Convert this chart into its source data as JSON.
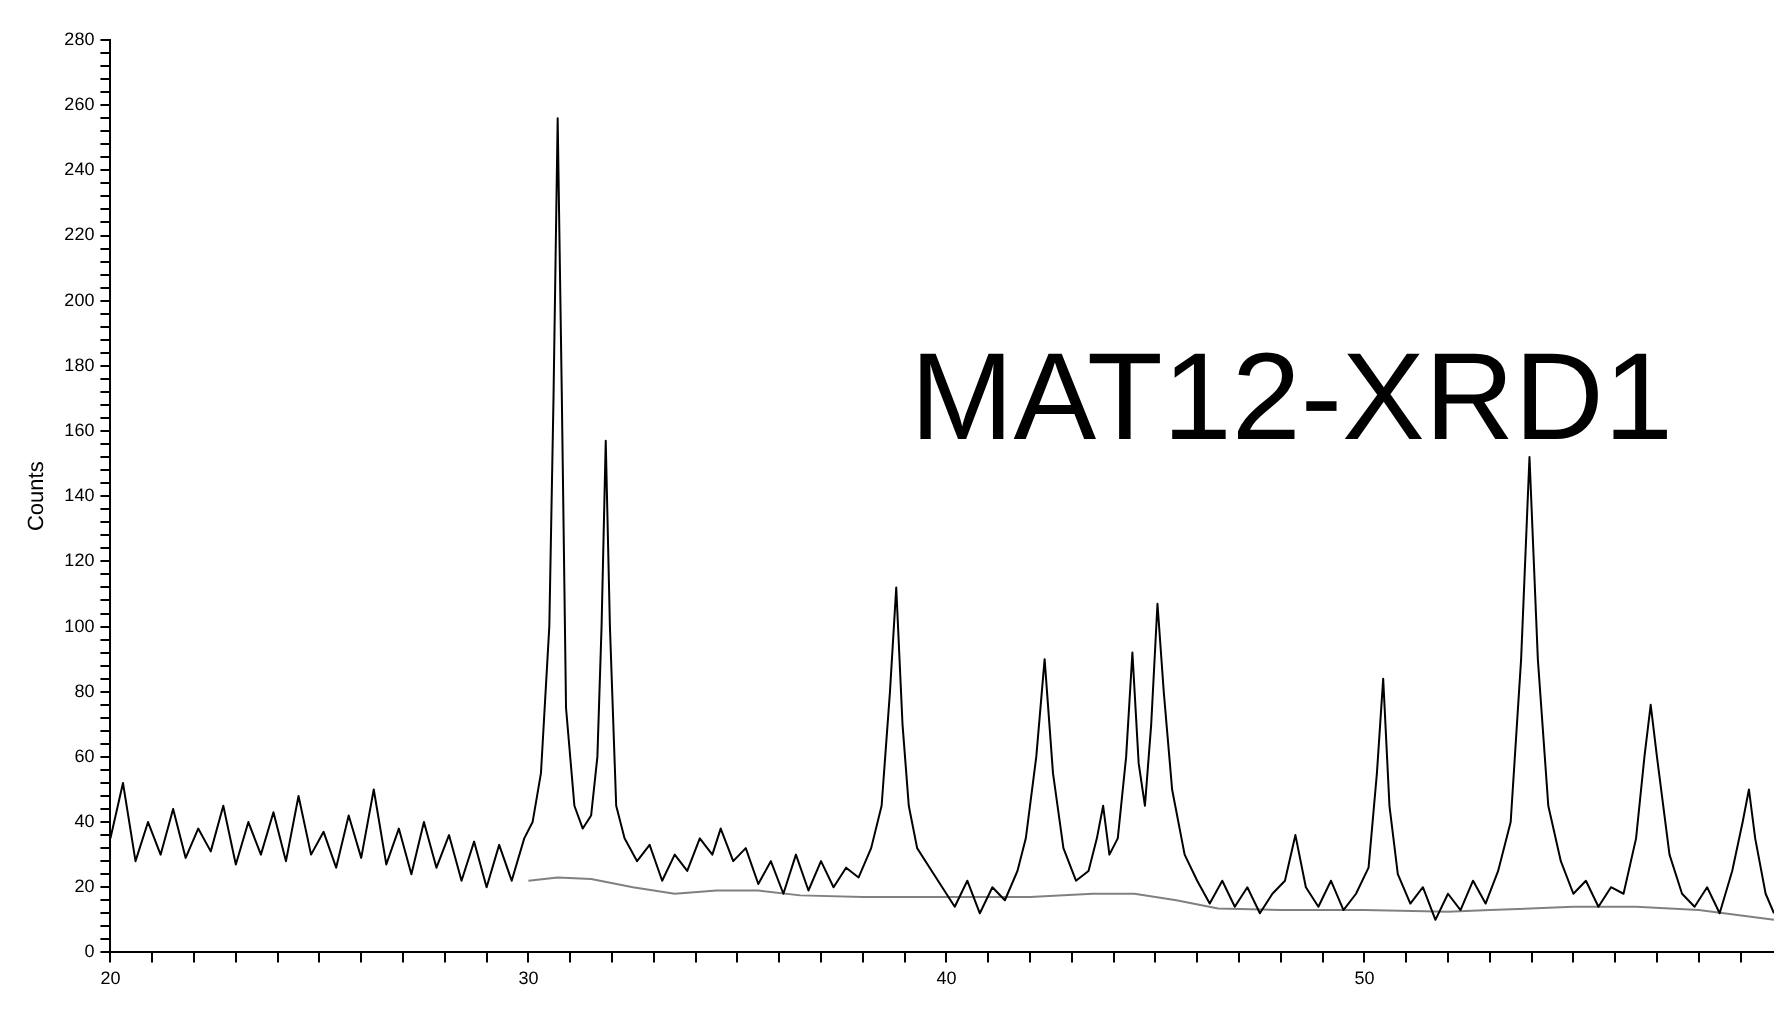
{
  "chart_data": {
    "type": "line",
    "ylabel": "Counts",
    "annotations": [
      "MAT12-XRD1"
    ],
    "xlim": [
      20,
      59.8
    ],
    "ylim": [
      0,
      280
    ],
    "xticks": [
      20,
      {
        "value": 21,
        "label": null
      },
      {
        "value": 22,
        "label": null
      },
      {
        "value": 23,
        "label": null
      },
      {
        "value": 24,
        "label": null
      },
      {
        "value": 25,
        "label": null
      },
      {
        "value": 26,
        "label": null
      },
      {
        "value": 27,
        "label": null
      },
      {
        "value": 28,
        "label": null
      },
      {
        "value": 29,
        "label": null
      },
      30,
      {
        "value": 31,
        "label": null
      },
      {
        "value": 32,
        "label": null
      },
      {
        "value": 33,
        "label": null
      },
      {
        "value": 34,
        "label": null
      },
      {
        "value": 35,
        "label": null
      },
      {
        "value": 36,
        "label": null
      },
      {
        "value": 37,
        "label": null
      },
      {
        "value": 38,
        "label": null
      },
      {
        "value": 39,
        "label": null
      },
      40,
      {
        "value": 41,
        "label": null
      },
      {
        "value": 42,
        "label": null
      },
      {
        "value": 43,
        "label": null
      },
      {
        "value": 44,
        "label": null
      },
      {
        "value": 45,
        "label": null
      },
      {
        "value": 46,
        "label": null
      },
      {
        "value": 47,
        "label": null
      },
      {
        "value": 48,
        "label": null
      },
      {
        "value": 49,
        "label": null
      },
      50,
      {
        "value": 51,
        "label": null
      },
      {
        "value": 52,
        "label": null
      },
      {
        "value": 53,
        "label": null
      },
      {
        "value": 54,
        "label": null
      },
      {
        "value": 55,
        "label": null
      },
      {
        "value": 56,
        "label": null
      },
      {
        "value": 57,
        "label": null
      },
      {
        "value": 58,
        "label": null
      },
      {
        "value": 59,
        "label": null
      }
    ],
    "yticks": [
      0,
      {
        "value": 4,
        "label": null
      },
      {
        "value": 8,
        "label": null
      },
      {
        "value": 12,
        "label": null
      },
      {
        "value": 16,
        "label": null
      },
      20,
      {
        "value": 24,
        "label": null
      },
      {
        "value": 28,
        "label": null
      },
      {
        "value": 32,
        "label": null
      },
      {
        "value": 36,
        "label": null
      },
      40,
      {
        "value": 44,
        "label": null
      },
      {
        "value": 48,
        "label": null
      },
      {
        "value": 52,
        "label": null
      },
      {
        "value": 56,
        "label": null
      },
      60,
      {
        "value": 64,
        "label": null
      },
      {
        "value": 68,
        "label": null
      },
      {
        "value": 72,
        "label": null
      },
      {
        "value": 76,
        "label": null
      },
      80,
      {
        "value": 84,
        "label": null
      },
      {
        "value": 88,
        "label": null
      },
      {
        "value": 92,
        "label": null
      },
      {
        "value": 96,
        "label": null
      },
      100,
      {
        "value": 104,
        "label": null
      },
      {
        "value": 108,
        "label": null
      },
      {
        "value": 112,
        "label": null
      },
      {
        "value": 116,
        "label": null
      },
      120,
      {
        "value": 124,
        "label": null
      },
      {
        "value": 128,
        "label": null
      },
      {
        "value": 132,
        "label": null
      },
      {
        "value": 136,
        "label": null
      },
      140,
      {
        "value": 144,
        "label": null
      },
      {
        "value": 148,
        "label": null
      },
      {
        "value": 152,
        "label": null
      },
      {
        "value": 156,
        "label": null
      },
      160,
      {
        "value": 164,
        "label": null
      },
      {
        "value": 168,
        "label": null
      },
      {
        "value": 172,
        "label": null
      },
      {
        "value": 176,
        "label": null
      },
      180,
      {
        "value": 184,
        "label": null
      },
      {
        "value": 188,
        "label": null
      },
      {
        "value": 192,
        "label": null
      },
      {
        "value": 196,
        "label": null
      },
      200,
      {
        "value": 204,
        "label": null
      },
      {
        "value": 208,
        "label": null
      },
      {
        "value": 212,
        "label": null
      },
      {
        "value": 216,
        "label": null
      },
      220,
      {
        "value": 224,
        "label": null
      },
      {
        "value": 228,
        "label": null
      },
      {
        "value": 232,
        "label": null
      },
      {
        "value": 236,
        "label": null
      },
      240,
      {
        "value": 244,
        "label": null
      },
      {
        "value": 248,
        "label": null
      },
      {
        "value": 252,
        "label": null
      },
      {
        "value": 256,
        "label": null
      },
      260,
      {
        "value": 264,
        "label": null
      },
      {
        "value": 268,
        "label": null
      },
      {
        "value": 272,
        "label": null
      },
      {
        "value": 276,
        "label": null
      },
      280
    ],
    "grid": false,
    "legend": false,
    "marker": "none",
    "series": [
      {
        "color": "#000000",
        "x": [
          20.0,
          20.3,
          20.6,
          20.9,
          21.2,
          21.5,
          21.8,
          22.1,
          22.4,
          22.7,
          23.0,
          23.3,
          23.6,
          23.9,
          24.2,
          24.5,
          24.8,
          25.1,
          25.4,
          25.7,
          26.0,
          26.3,
          26.6,
          26.9,
          27.2,
          27.5,
          27.8,
          28.1,
          28.4,
          28.7,
          29.0,
          29.3,
          29.6,
          29.9,
          30.1,
          30.3,
          30.5,
          30.6,
          30.7,
          30.8,
          30.9,
          31.1,
          31.3,
          31.5,
          31.65,
          31.75,
          31.85,
          31.95,
          32.1,
          32.3,
          32.6,
          32.9,
          33.2,
          33.5,
          33.8,
          34.1,
          34.4,
          34.6,
          34.9,
          35.2,
          35.5,
          35.8,
          36.1,
          36.4,
          36.7,
          37.0,
          37.3,
          37.6,
          37.9,
          38.2,
          38.45,
          38.65,
          38.8,
          38.95,
          39.1,
          39.3,
          39.6,
          39.9,
          40.2,
          40.5,
          40.8,
          41.1,
          41.4,
          41.7,
          41.9,
          42.15,
          42.35,
          42.55,
          42.8,
          43.1,
          43.4,
          43.6,
          43.75,
          43.9,
          44.1,
          44.3,
          44.45,
          44.6,
          44.75,
          44.9,
          45.05,
          45.2,
          45.4,
          45.7,
          46.0,
          46.3,
          46.6,
          46.9,
          47.2,
          47.5,
          47.8,
          48.1,
          48.35,
          48.6,
          48.9,
          49.2,
          49.5,
          49.8,
          50.1,
          50.3,
          50.45,
          50.6,
          50.8,
          51.1,
          51.4,
          51.7,
          52.0,
          52.3,
          52.6,
          52.9,
          53.2,
          53.5,
          53.75,
          53.95,
          54.15,
          54.4,
          54.7,
          55.0,
          55.3,
          55.6,
          55.9,
          56.2,
          56.5,
          56.7,
          56.85,
          57.0,
          57.3,
          57.6,
          57.9,
          58.2,
          58.5,
          58.8,
          59.05,
          59.2,
          59.35,
          59.6,
          59.8
        ],
        "values": [
          35,
          52,
          28,
          40,
          30,
          44,
          29,
          38,
          31,
          45,
          27,
          40,
          30,
          43,
          28,
          48,
          30,
          37,
          26,
          42,
          29,
          50,
          27,
          38,
          24,
          40,
          26,
          36,
          22,
          34,
          20,
          33,
          22,
          35,
          40,
          55,
          100,
          170,
          256,
          170,
          75,
          45,
          38,
          42,
          60,
          100,
          157,
          100,
          45,
          35,
          28,
          33,
          22,
          30,
          25,
          35,
          30,
          38,
          28,
          32,
          21,
          28,
          18,
          30,
          19,
          28,
          20,
          26,
          23,
          32,
          45,
          80,
          112,
          70,
          45,
          32,
          26,
          20,
          14,
          22,
          12,
          20,
          16,
          25,
          35,
          60,
          90,
          55,
          32,
          22,
          25,
          35,
          45,
          30,
          35,
          60,
          92,
          58,
          45,
          70,
          107,
          80,
          50,
          30,
          22,
          15,
          22,
          14,
          20,
          12,
          18,
          22,
          36,
          20,
          14,
          22,
          13,
          18,
          26,
          55,
          84,
          45,
          24,
          15,
          20,
          10,
          18,
          13,
          22,
          15,
          25,
          40,
          90,
          152,
          90,
          45,
          28,
          18,
          22,
          14,
          20,
          18,
          35,
          60,
          76,
          60,
          30,
          18,
          14,
          20,
          12,
          25,
          40,
          50,
          35,
          18,
          12
        ]
      },
      {
        "color": "#808080",
        "x": [
          30.0,
          30.7,
          31.5,
          32.5,
          33.5,
          34.5,
          35.5,
          36.5,
          38,
          40,
          42,
          43.5,
          44.5,
          45.5,
          46.5,
          48,
          50,
          52,
          53,
          55,
          56.5,
          58,
          59.8
        ],
        "values": [
          22,
          23,
          22.5,
          20,
          18,
          19,
          19,
          17.5,
          17,
          17,
          17,
          18,
          18,
          16,
          13.5,
          13,
          13,
          12.5,
          13,
          14,
          14,
          13,
          10
        ]
      }
    ]
  }
}
